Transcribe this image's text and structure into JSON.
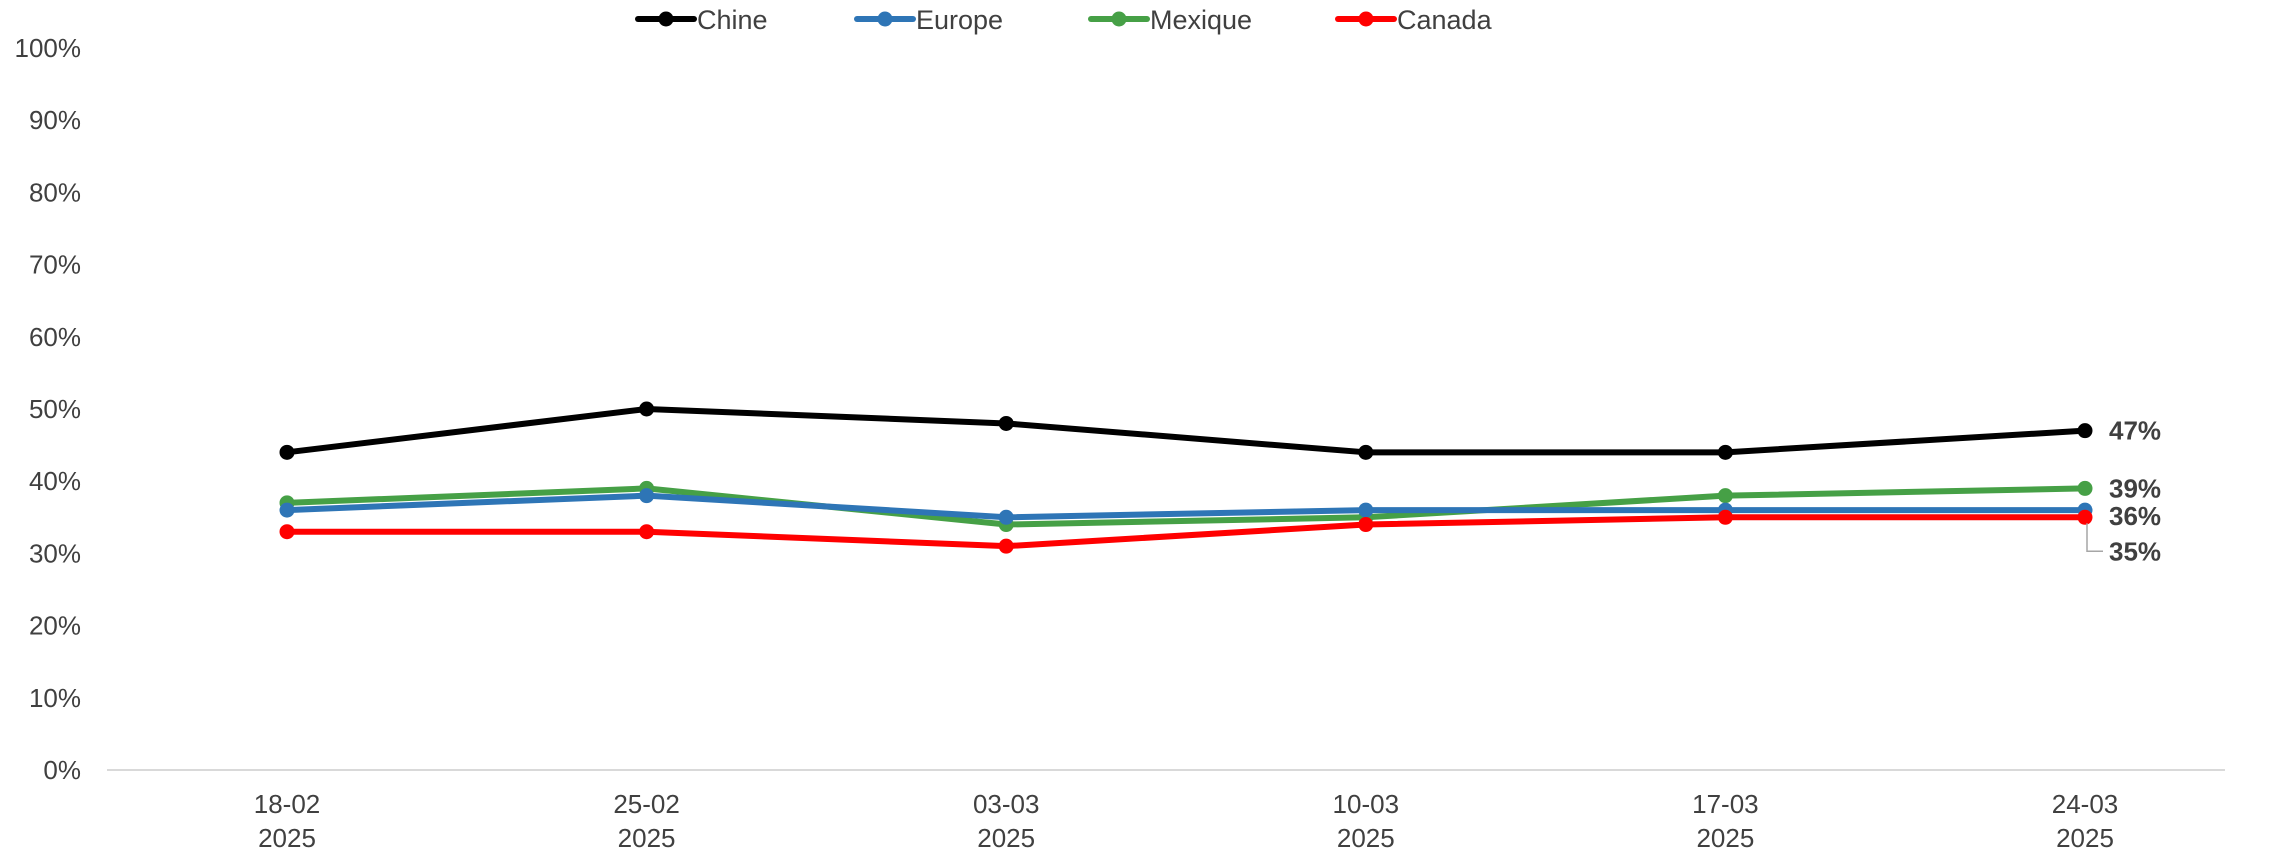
{
  "chart_data": {
    "type": "line",
    "title": "",
    "xlabel": "",
    "ylabel": "",
    "categories": [
      [
        "18-02",
        "2025"
      ],
      [
        "25-02",
        "2025"
      ],
      [
        "03-03",
        "2025"
      ],
      [
        "10-03",
        "2025"
      ],
      [
        "17-03",
        "2025"
      ],
      [
        "24-03",
        "2025"
      ]
    ],
    "ylim": [
      0,
      100
    ],
    "yticks": [
      0,
      10,
      20,
      30,
      40,
      50,
      60,
      70,
      80,
      90,
      100
    ],
    "ytick_suffix": "%",
    "grid": false,
    "legend_position": "top-center",
    "series": [
      {
        "name": "Chine",
        "color": "#000000",
        "values": [
          44,
          50,
          48,
          44,
          44,
          47
        ],
        "end_label": "47%"
      },
      {
        "name": "Europe",
        "color": "#2E75B6",
        "values": [
          36,
          38,
          35,
          36,
          36,
          36
        ],
        "end_label": "36%"
      },
      {
        "name": "Mexique",
        "color": "#46A046",
        "values": [
          37,
          39,
          34,
          35,
          38,
          39
        ],
        "end_label": "39%"
      },
      {
        "name": "Canada",
        "color": "#FF0000",
        "values": [
          33,
          33,
          31,
          34,
          35,
          35
        ],
        "end_label": "35%"
      }
    ]
  }
}
